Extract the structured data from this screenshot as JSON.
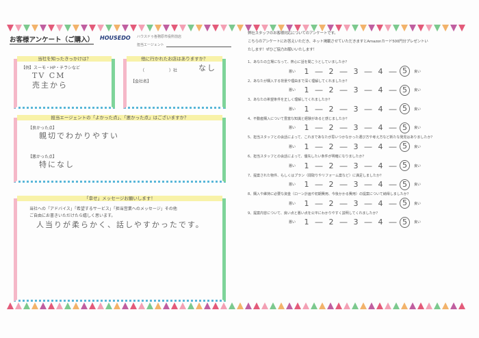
{
  "header": {
    "title": "お客様アンケート（ご購入）",
    "logo": "HOUSEDO",
    "store": "ハウスドゥ各務原市役所前店",
    "agent_label": "担当エージェント"
  },
  "box_source": {
    "heading": "当社を知ったきっかけは？",
    "example": "【例】スーモ・HP・チラシなど",
    "answer_line1": "TV CM",
    "answer_line2": "売主から"
  },
  "box_other": {
    "heading": "他に行かれたお店はありますか？",
    "paren": "（　　　　　　）社",
    "answer": "なし",
    "company_label": "【会社名】"
  },
  "box_agent": {
    "heading": "担当エージェントの「よかった点」、「悪かった点」はございますか？",
    "good_label": "【良かった点】",
    "good_answer": "親切でわかりやすい",
    "bad_label": "【悪かった点】",
    "bad_answer": "特になし"
  },
  "box_message": {
    "heading": "「幸せ」メッセージお願いします！",
    "instructions_line1": "当社への「アドバイス」「希望するサービス」「担当営業へのメッセージ」その他",
    "instructions_line2": "ご自由にお書きいただけたら嬉しく思います。",
    "answer": "人当りが柔らかく、話しやすかったです。"
  },
  "intro": {
    "line1": "弊社スタッフのお客様対応についてのアンケートです。",
    "line2": "こちらのアンケートにお答えいただき、ネット掲載させていただきますとAmazonカード500円分プレゼントい",
    "line3": "たします！ぜひご協力お願いいたします！"
  },
  "scale_labels": {
    "bad": "悪い",
    "good": "良い",
    "dash": "―"
  },
  "questions": [
    {
      "text": "1、あなたの立場になって、熱心に話を聞こうとしていましたか？",
      "selected": 5
    },
    {
      "text": "2、あなたが購入する背景や理由まで深く理解してくれましたか？",
      "selected": 5
    },
    {
      "text": "3、あなたの希望条件を正しく理解してくれましたか？",
      "selected": 5
    },
    {
      "text": "4、不動産購入について豊富な知識と経験があると感じましたか？",
      "selected": 5
    },
    {
      "text": "5、担当スタッフとの会話によって、これまであなたが思いつかなかった選び方や考え方など新たな発見はありましたか？",
      "selected": 5
    },
    {
      "text": "6、担当スタッフとの会話によって、優先したい条件が明確になりましたか？",
      "selected": 5
    },
    {
      "text": "7、提案された物件、もしくはプラン（間取りやリフォーム案など）に満足しましたか？",
      "selected": 5
    },
    {
      "text": "8、購入や維持に必要な資金（ローン計画や初期費用、今後かかる費用）の提案について納得しましたか？",
      "selected": 5
    },
    {
      "text": "9、提案内容について、良い点と悪い点を公平にわかりやすく説明してくれましたか？",
      "selected": 5
    }
  ],
  "colors": {
    "flags": [
      "#e35b7a",
      "#f3a0b4",
      "#7cc98e",
      "#f2b36b",
      "#c05fa0"
    ]
  }
}
